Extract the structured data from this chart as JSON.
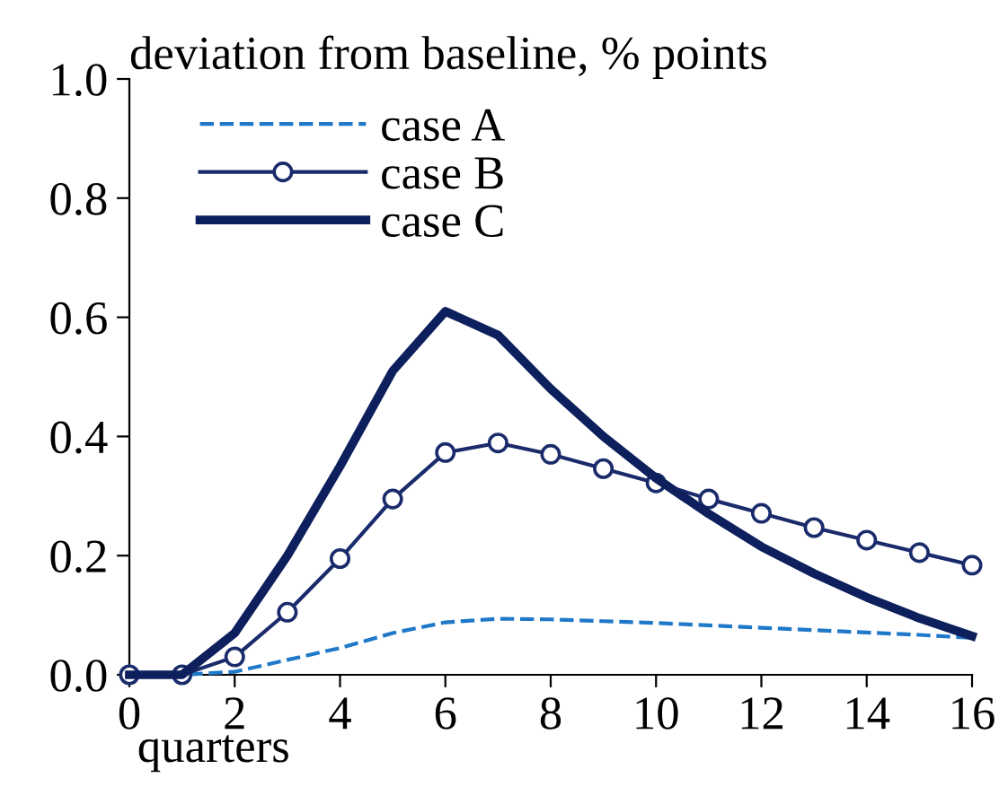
{
  "chart_data": {
    "type": "line",
    "title": "deviation from baseline, % points",
    "xlabel": "quarters",
    "x": [
      0,
      1,
      2,
      3,
      4,
      5,
      6,
      7,
      8,
      9,
      10,
      11,
      12,
      13,
      14,
      15,
      16
    ],
    "series": [
      {
        "name": "case A",
        "color": "#1f78c8",
        "line_style": "dashed",
        "marker": "none",
        "values": [
          0,
          0,
          0.005,
          0.025,
          0.045,
          0.07,
          0.088,
          0.094,
          0.093,
          0.09,
          0.087,
          0.083,
          0.079,
          0.075,
          0.071,
          0.067,
          0.062
        ]
      },
      {
        "name": "case B",
        "color": "#1a2b6b",
        "line_style": "solid",
        "marker": "circle",
        "values": [
          0,
          0,
          0.03,
          0.105,
          0.195,
          0.295,
          0.373,
          0.389,
          0.37,
          0.346,
          0.322,
          0.295,
          0.271,
          0.247,
          0.226,
          0.205,
          0.184
        ]
      },
      {
        "name": "case C",
        "color": "#0d1f5c",
        "line_style": "solid",
        "marker": "none",
        "values": [
          0,
          0,
          0.07,
          0.2,
          0.35,
          0.51,
          0.61,
          0.57,
          0.48,
          0.4,
          0.33,
          0.27,
          0.215,
          0.17,
          0.13,
          0.095,
          0.065
        ]
      }
    ],
    "xlim": [
      0,
      16
    ],
    "xticks": [
      0,
      2,
      4,
      6,
      8,
      10,
      12,
      14,
      16
    ],
    "ylim": [
      0,
      1.0
    ],
    "yticks": [
      {
        "value": 0,
        "label": "0.0"
      },
      {
        "value": 0.2,
        "label": "0.2"
      },
      {
        "value": 0.4,
        "label": "0.4"
      },
      {
        "value": 0.6,
        "label": "0.6"
      },
      {
        "value": 0.8,
        "label": "0.8"
      },
      {
        "value": 1.0,
        "label": "1.0"
      }
    ],
    "grid": false,
    "legend": "top left"
  }
}
